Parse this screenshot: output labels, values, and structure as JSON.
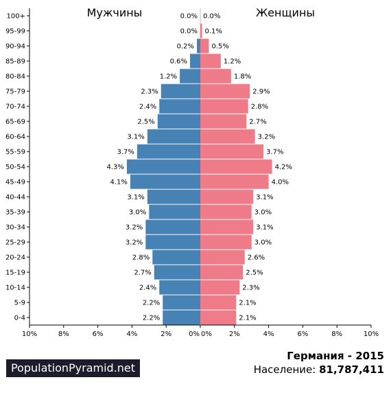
{
  "chart_data": {
    "type": "bar",
    "orientation": "horizontal-pyramid",
    "title": "Германия - 2015",
    "categories": [
      "0-4",
      "5-9",
      "10-14",
      "15-19",
      "20-24",
      "25-29",
      "30-34",
      "35-39",
      "40-44",
      "45-49",
      "50-54",
      "55-59",
      "60-64",
      "65-69",
      "70-74",
      "75-79",
      "80-84",
      "85-89",
      "90-94",
      "95-99",
      "100+"
    ],
    "series": [
      {
        "name": "Мужчины",
        "color": "#4682b4",
        "values": [
          2.2,
          2.2,
          2.4,
          2.7,
          2.8,
          3.2,
          3.2,
          3.0,
          3.1,
          4.1,
          4.3,
          3.7,
          3.1,
          2.5,
          2.4,
          2.3,
          1.2,
          0.6,
          0.2,
          0.0,
          0.0
        ],
        "labels": [
          "2.2%",
          "2.2%",
          "2.4%",
          "2.7%",
          "2.8%",
          "3.2%",
          "3.2%",
          "3.0%",
          "3.1%",
          "4.1%",
          "4.3%",
          "3.7%",
          "3.1%",
          "2.5%",
          "2.4%",
          "2.3%",
          "1.2%",
          "0.6%",
          "0.2%",
          "0.0%",
          "0.0%"
        ]
      },
      {
        "name": "Женщины",
        "color": "#ef7b89",
        "values": [
          2.1,
          2.1,
          2.3,
          2.5,
          2.6,
          3.0,
          3.1,
          3.0,
          3.1,
          4.0,
          4.2,
          3.7,
          3.2,
          2.7,
          2.8,
          2.9,
          1.8,
          1.2,
          0.5,
          0.1,
          0.0
        ],
        "labels": [
          "2.1%",
          "2.1%",
          "2.3%",
          "2.5%",
          "2.6%",
          "3.0%",
          "3.1%",
          "3.0%",
          "3.1%",
          "4.0%",
          "4.2%",
          "3.7%",
          "3.2%",
          "2.7%",
          "2.8%",
          "2.9%",
          "1.8%",
          "1.2%",
          "0.5%",
          "0.1%",
          "0.0%"
        ]
      }
    ],
    "x_ticks": [
      "10%",
      "8%",
      "6%",
      "4%",
      "2%",
      "0%",
      "0%",
      "2%",
      "4%",
      "6%",
      "8%",
      "10%"
    ],
    "xlim": [
      -10,
      10
    ],
    "grid": false,
    "legend": "top"
  },
  "branding": "PopulationPyramid.net",
  "country_year": "Германия - 2015",
  "population": {
    "label": "Население:",
    "value": "81,787,411"
  }
}
